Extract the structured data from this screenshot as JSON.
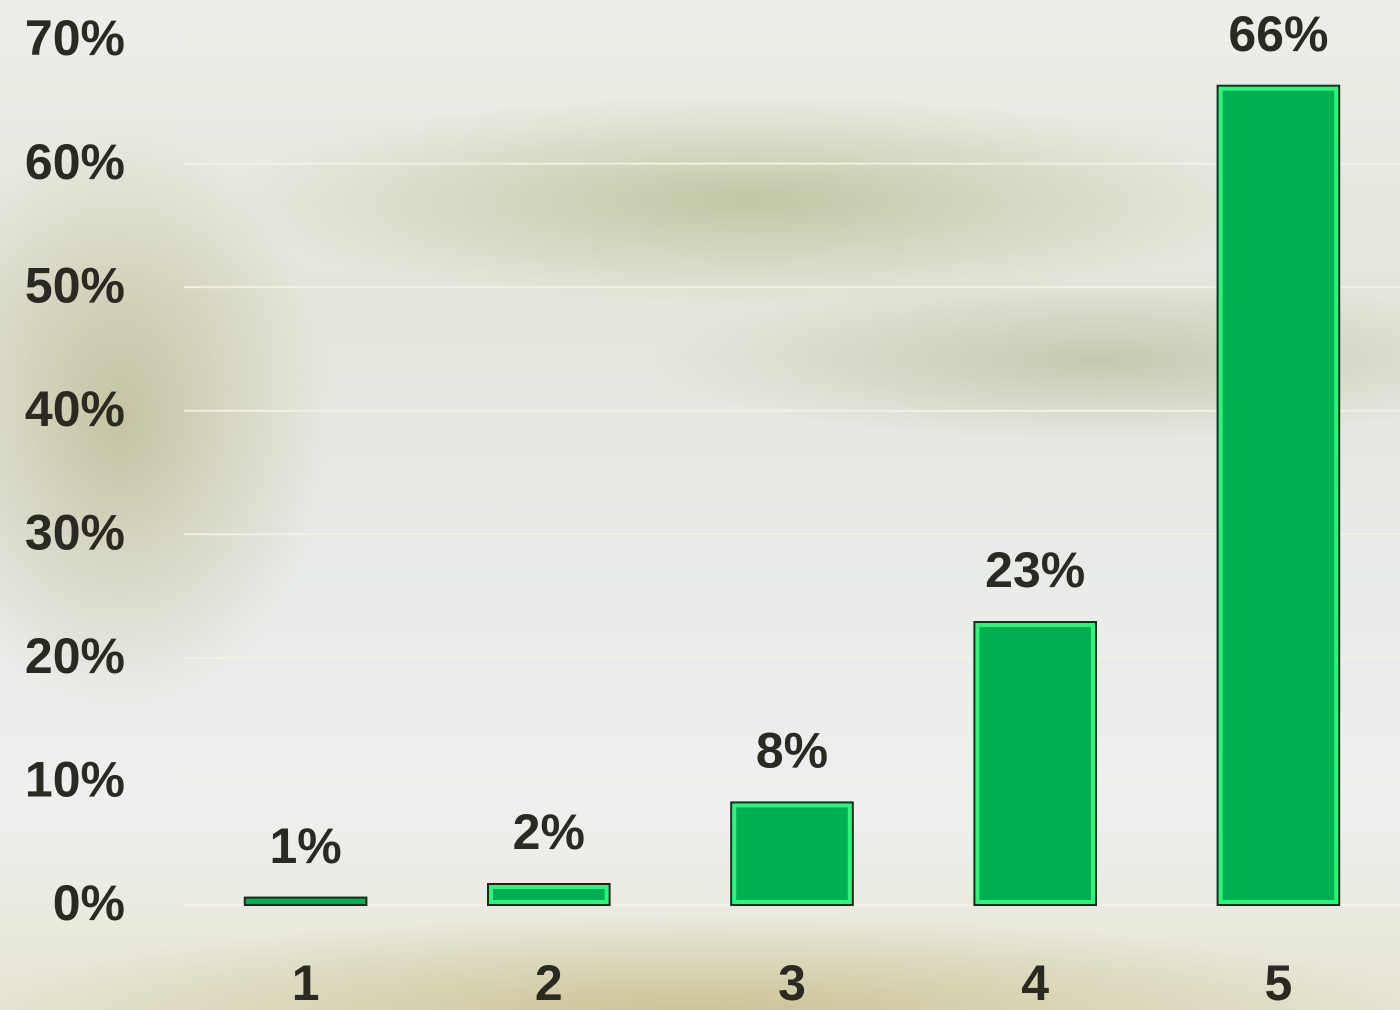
{
  "chart_data": {
    "type": "bar",
    "categories": [
      "1",
      "2",
      "3",
      "4",
      "5"
    ],
    "values": [
      0.6,
      1.7,
      8.3,
      22.9,
      66.3
    ],
    "value_labels": [
      "1%",
      "2%",
      "8%",
      "23%",
      "66%"
    ],
    "color": "#00b050",
    "ylim": [
      0,
      70
    ],
    "yticks": [
      {
        "value": 0,
        "label": "0%"
      },
      {
        "value": 10,
        "label": "10%"
      },
      {
        "value": 20,
        "label": "20%"
      },
      {
        "value": 30,
        "label": "30%"
      },
      {
        "value": 40,
        "label": "40%"
      },
      {
        "value": 50,
        "label": "50%"
      },
      {
        "value": 60,
        "label": "60%"
      },
      {
        "value": 70,
        "label": "70%"
      }
    ],
    "grid": true
  }
}
